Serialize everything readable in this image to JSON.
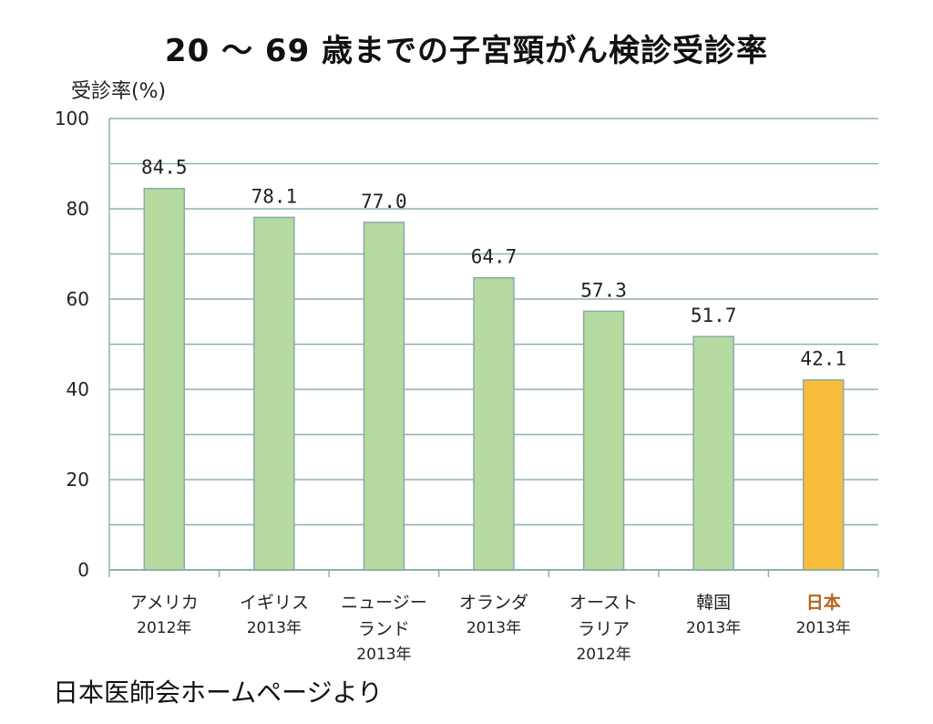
{
  "chart_data": {
    "type": "bar",
    "title": "20 〜 69 歳までの子宮頸がん検診受診率",
    "ylabel": "受診率(%)",
    "xlabel": "",
    "ylim": [
      0,
      100
    ],
    "yticks": [
      0,
      20,
      40,
      60,
      80,
      100
    ],
    "grid": true,
    "categories": [
      {
        "name": [
          "アメリカ"
        ],
        "year": "2012年"
      },
      {
        "name": [
          "イギリス"
        ],
        "year": "2013年"
      },
      {
        "name": [
          "ニュージー",
          "ランド"
        ],
        "year": "2013年"
      },
      {
        "name": [
          "オランダ"
        ],
        "year": "2013年"
      },
      {
        "name": [
          "オースト",
          "ラリア"
        ],
        "year": "2012年"
      },
      {
        "name": [
          "韓国"
        ],
        "year": "2013年"
      },
      {
        "name": [
          "日本"
        ],
        "year": "2013年",
        "highlight": true
      }
    ],
    "values": [
      84.5,
      78.1,
      77.0,
      64.7,
      57.3,
      51.7,
      42.1
    ],
    "value_labels": [
      "84.5",
      "78.1",
      "77.0",
      "64.7",
      "57.3",
      "51.7",
      "42.1"
    ],
    "colors": {
      "bar": "#b5dba0",
      "bar_highlight": "#f7bd3a",
      "grid": "#8fb0b3",
      "highlight_text": "#b5651d"
    }
  },
  "source": "日本医師会ホームページより"
}
